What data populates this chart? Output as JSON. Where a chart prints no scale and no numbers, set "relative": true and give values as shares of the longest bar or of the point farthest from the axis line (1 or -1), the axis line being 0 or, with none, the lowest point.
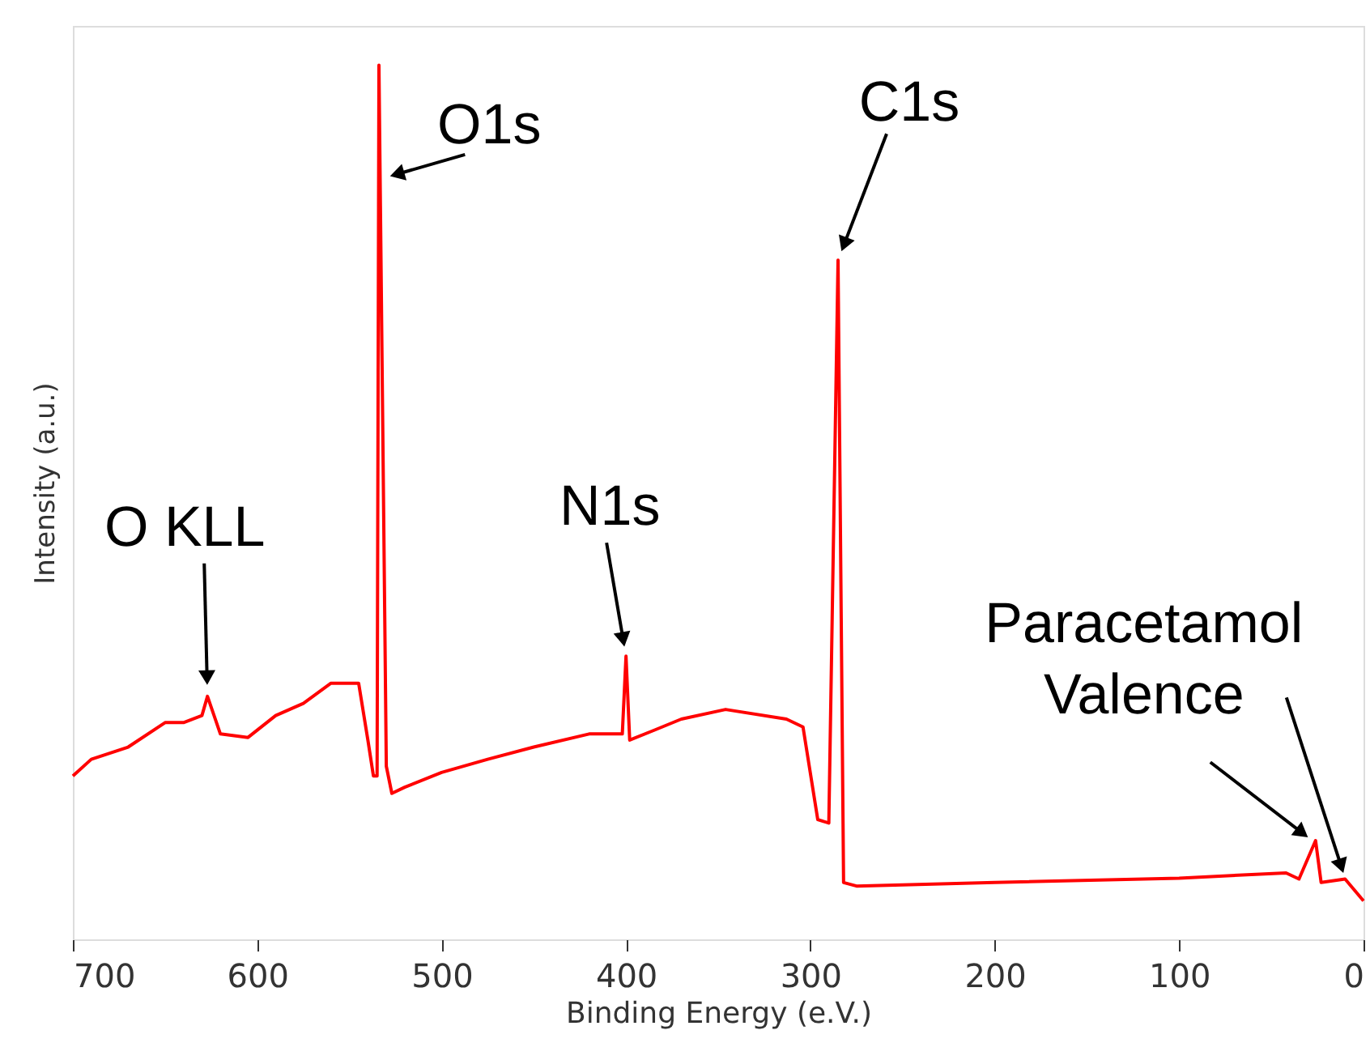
{
  "chart_data": {
    "type": "line",
    "relative": true,
    "xlabel": "Binding Energy (e.V.)",
    "ylabel": "Intensity (a.u.)",
    "xlim": [
      700,
      0
    ],
    "xticks": [
      700,
      600,
      500,
      400,
      300,
      200,
      100,
      0
    ],
    "grid": false,
    "marker": "none",
    "line_style": "solid",
    "x": [
      700,
      690,
      670,
      650,
      640,
      630,
      627,
      620,
      605,
      590,
      575,
      560,
      545,
      540,
      537,
      535,
      534,
      532,
      530,
      527,
      520,
      500,
      475,
      450,
      420,
      402,
      400,
      398,
      385,
      370,
      346,
      313,
      304,
      296,
      290,
      285,
      282,
      275,
      200,
      100,
      42,
      35,
      26,
      23,
      10,
      0
    ],
    "series": [
      {
        "color": "#ff0000",
        "values": [
          0.187,
          0.206,
          0.22,
          0.248,
          0.248,
          0.256,
          0.278,
          0.235,
          0.231,
          0.256,
          0.27,
          0.293,
          0.293,
          0.228,
          0.187,
          0.187,
          1.0,
          0.6,
          0.198,
          0.167,
          0.174,
          0.191,
          0.206,
          0.22,
          0.235,
          0.235,
          0.324,
          0.228,
          0.239,
          0.252,
          0.263,
          0.252,
          0.243,
          0.137,
          0.133,
          0.777,
          0.065,
          0.061,
          0.065,
          0.07,
          0.076,
          0.069,
          0.113,
          0.065,
          0.069,
          0.044
        ]
      }
    ],
    "annotations": [
      {
        "text": "O1s",
        "x": 533,
        "y": 0.87
      },
      {
        "text": "C1s",
        "x": 285,
        "y": 0.777
      },
      {
        "text": "N1s",
        "x": 400,
        "y": 0.324
      },
      {
        "text": "O KLL",
        "x": 627,
        "y": 0.28
      },
      {
        "text": "Paracetamol Valence",
        "x": 26,
        "y": 0.11
      }
    ]
  }
}
